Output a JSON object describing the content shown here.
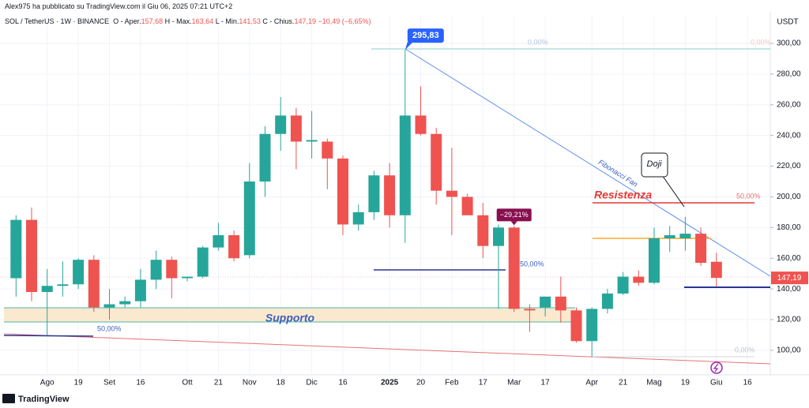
{
  "chart_data": {
    "type": "candlestick",
    "author_line": "Alex975 ha pubblicato su TradingView.com il Giu 06, 2025 07:21 UTC+2",
    "symbol": "SOL / TetherUS · 1W · BINANCE",
    "legend_items": [
      {
        "label": "O - Aper.",
        "value": "157,68"
      },
      {
        "label": "H - Max.",
        "value": "163,64"
      },
      {
        "label": "L - Min.",
        "value": "141,53"
      },
      {
        "label": "C - Chius.",
        "value": "147,19"
      }
    ],
    "change": "−10,49 (−6,65%)",
    "currency": "USDT",
    "categories": [
      null,
      null,
      "Ago",
      null,
      "19",
      null,
      "Set",
      null,
      "16",
      null,
      null,
      "Ott",
      null,
      "21",
      null,
      "Nov",
      null,
      "18",
      null,
      "Dic",
      null,
      "16",
      null,
      null,
      "2025",
      null,
      "20",
      null,
      "Feb",
      null,
      "17",
      null,
      "Mar",
      null,
      "17",
      null,
      null,
      "Apr",
      null,
      "21",
      null,
      "Mag",
      null,
      "19",
      null,
      "Giu",
      null,
      "16"
    ],
    "open": [
      147,
      185,
      138,
      142,
      143,
      159,
      128,
      130,
      132,
      146,
      159,
      147,
      148,
      167,
      175,
      162,
      210,
      241,
      253,
      236,
      236,
      225,
      182,
      190,
      214,
      188,
      253,
      241,
      204,
      200,
      188,
      168,
      180,
      127,
      128,
      135,
      126,
      106,
      127,
      137,
      148,
      144,
      173,
      173,
      176,
      157.68,
      null,
      null
    ],
    "high": [
      188,
      193,
      153,
      158,
      160,
      162,
      140,
      135,
      153,
      165,
      161,
      148,
      168,
      183,
      178,
      222,
      246,
      265,
      258,
      256,
      238,
      227,
      195,
      217,
      222,
      295.83,
      272,
      245,
      232,
      202,
      196,
      182,
      181,
      130,
      135,
      148,
      128,
      128,
      140,
      151,
      152,
      180,
      181,
      187,
      180,
      163.64,
      null,
      null
    ],
    "low": [
      135,
      132,
      110,
      135,
      140,
      125,
      120,
      128,
      128,
      140,
      134,
      145,
      147,
      165,
      158,
      160,
      200,
      230,
      218,
      225,
      205,
      175,
      178,
      185,
      180,
      170,
      240,
      195,
      175,
      188,
      160,
      127,
      125,
      112,
      122,
      118,
      105,
      96,
      124,
      136,
      142,
      143,
      164,
      165,
      155,
      141.53,
      null,
      null
    ],
    "close": [
      185,
      138,
      142,
      143,
      159,
      128,
      130,
      132,
      146,
      159,
      147,
      148,
      167,
      175,
      160,
      210,
      241,
      253,
      236,
      237,
      225,
      182,
      190,
      214,
      188,
      253,
      241,
      204,
      200,
      188,
      168,
      180,
      127,
      126,
      135,
      126,
      106,
      127,
      137,
      148,
      144,
      173,
      175,
      176,
      157,
      147.19,
      null,
      null
    ],
    "up_color": "#26a69a",
    "down_color": "#ef5350",
    "ylim": [
      84,
      318
    ],
    "yticks": [
      {
        "value": 100,
        "label": "100,00"
      },
      {
        "value": 120,
        "label": "120,00"
      },
      {
        "value": 140,
        "label": "140,00"
      },
      {
        "value": 160,
        "label": "160,00"
      },
      {
        "value": 180,
        "label": "180,00"
      },
      {
        "value": 200,
        "label": "200,00"
      },
      {
        "value": 220,
        "label": "220,00"
      },
      {
        "value": 240,
        "label": "240,00"
      },
      {
        "value": 260,
        "label": "260,00"
      },
      {
        "value": 280,
        "label": "280,00"
      },
      {
        "value": 300,
        "label": "300,00"
      }
    ],
    "grid": true,
    "last_price_label": "147,19",
    "peak_label": "295,83",
    "drop_label": "−29,21%",
    "annotations": {
      "fan": "Fibonacci Fan",
      "doji": "Doji",
      "resistance": "Resistenza",
      "support": "Supporto",
      "fib_top_a": "0,00%",
      "fib_top_b": "0,00%",
      "fib_bottom": "0,00%",
      "fib_mid_a": "50,00%",
      "fib_mid_b": "50,00%",
      "fib_mid_c": "50,00%"
    },
    "brand": "TradingView"
  }
}
